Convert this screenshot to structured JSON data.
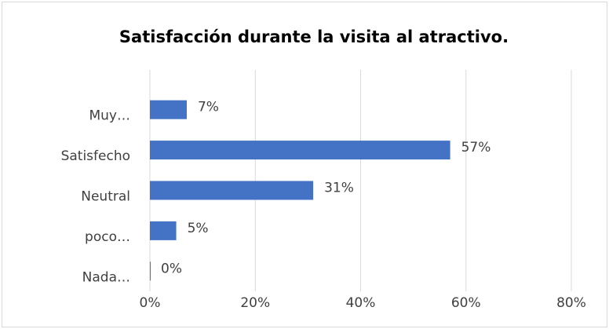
{
  "chart_data": {
    "type": "bar",
    "orientation": "horizontal",
    "title": "Satisfacción durante la visita al atractivo.",
    "categories": [
      "Muy…",
      "Satisfecho",
      "Neutral",
      "poco…",
      "Nada…"
    ],
    "values": [
      7,
      57,
      31,
      5,
      0
    ],
    "value_labels": [
      "7%",
      "57%",
      "31%",
      "5%",
      "0%"
    ],
    "color": "#4472c4",
    "xlim": [
      0,
      80
    ],
    "xticks": [
      {
        "value": 0,
        "label": "0%"
      },
      {
        "value": 20,
        "label": "20%"
      },
      {
        "value": 40,
        "label": "40%"
      },
      {
        "value": 60,
        "label": "60%"
      },
      {
        "value": 80,
        "label": "80%"
      }
    ],
    "grid": true
  }
}
